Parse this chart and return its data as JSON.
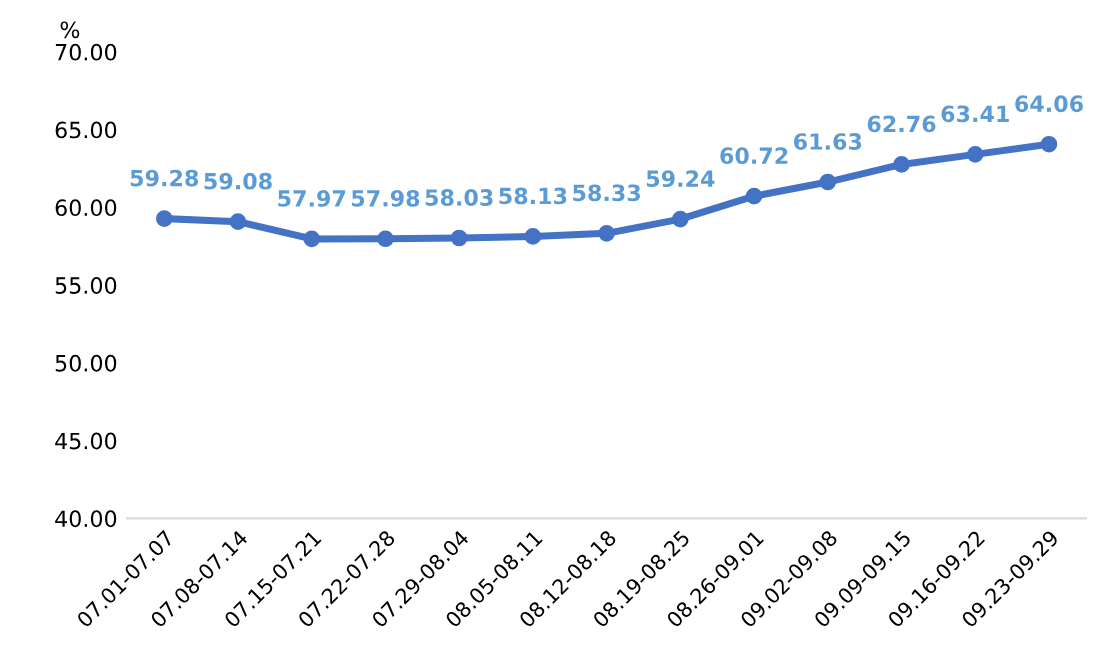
{
  "chart_data": {
    "type": "line",
    "ylabel": "%",
    "categories": [
      "07.01-07.07",
      "07.08-07.14",
      "07.15-07.21",
      "07.22-07.28",
      "07.29-08.04",
      "08.05-08.11",
      "08.12-08.18",
      "08.19-08.25",
      "08.26-09.01",
      "09.02-09.08",
      "09.09-09.15",
      "09.16-09.22",
      "09.23-09.29"
    ],
    "series": [
      {
        "color": "#4472c4",
        "values": [
          59.28,
          59.08,
          57.97,
          57.98,
          58.03,
          58.13,
          58.33,
          59.24,
          60.72,
          61.63,
          62.76,
          63.41,
          64.06
        ]
      }
    ],
    "ylim": [
      40,
      70
    ],
    "yticks": [
      {
        "value": 40,
        "label": "40.00"
      },
      {
        "value": 45,
        "label": "45.00"
      },
      {
        "value": 50,
        "label": "50.00"
      },
      {
        "value": 55,
        "label": "55.00"
      },
      {
        "value": 60,
        "label": "60.00"
      },
      {
        "value": 65,
        "label": "65.00"
      },
      {
        "value": 70,
        "label": "70.00"
      }
    ],
    "grid": false,
    "legend": false,
    "marker": "circle",
    "line_style": "solid",
    "data_labels": true
  }
}
